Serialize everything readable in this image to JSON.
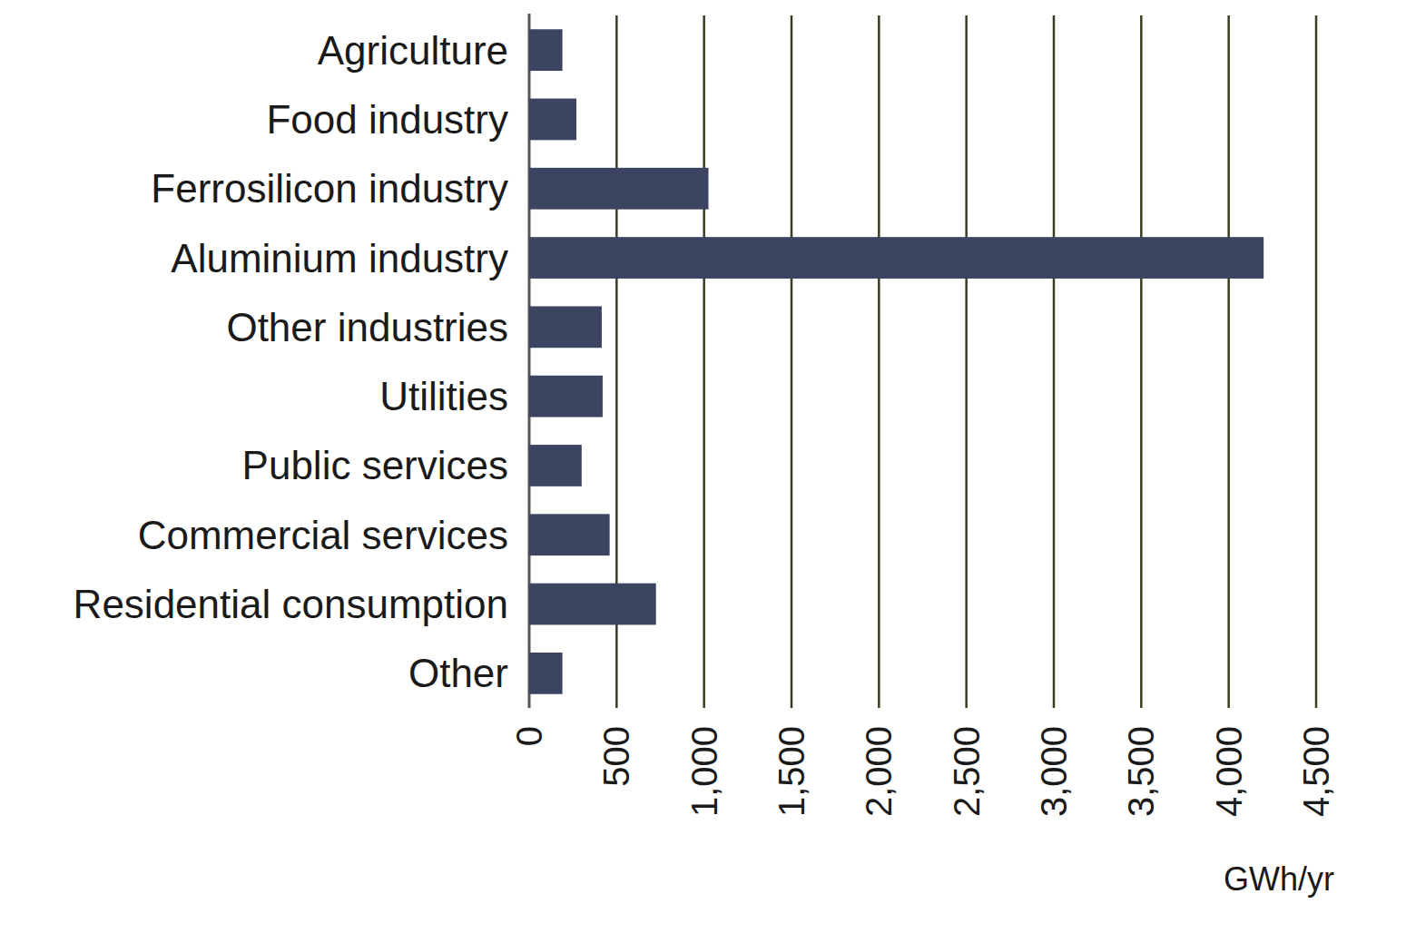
{
  "chart_data": {
    "type": "bar",
    "orientation": "horizontal",
    "categories": [
      "Agriculture",
      "Food industry",
      "Ferrosilicon industry",
      "Aluminium industry",
      "Other industries",
      "Utilities",
      "Public services",
      "Commercial services",
      "Residential consumption",
      "Other"
    ],
    "values": [
      190,
      270,
      1025,
      4200,
      415,
      420,
      300,
      460,
      725,
      190
    ],
    "color": "#3b4562",
    "x_label": "GWh/yr",
    "xlim": [
      0,
      4500
    ],
    "xticks": [
      0,
      500,
      {
        "value": 1000,
        "label": "1,000"
      },
      {
        "value": 1500,
        "label": "1,500"
      },
      {
        "value": 2000,
        "label": "2,000"
      },
      {
        "value": 2500,
        "label": "2,500"
      },
      {
        "value": 3000,
        "label": "3,000"
      },
      {
        "value": 3500,
        "label": "3,500"
      },
      {
        "value": 4000,
        "label": "4,000"
      },
      {
        "value": 4500,
        "label": "4,500"
      }
    ],
    "grid": true
  }
}
